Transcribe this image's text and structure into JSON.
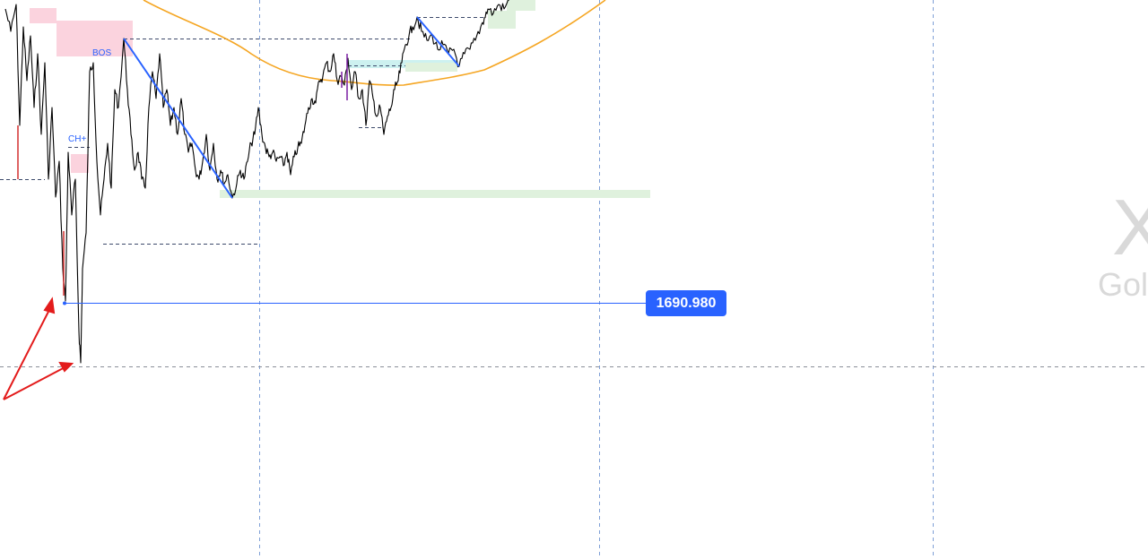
{
  "chart_data": {
    "type": "line",
    "symbol_watermark": "X",
    "symbol_subtitle_watermark": "Gol",
    "annotations": {
      "bos_label": "BOS",
      "choch_label": "CH+"
    },
    "horizontal_line": {
      "price": 1690.98,
      "label": "1690.980",
      "color": "#2962ff"
    },
    "colors": {
      "price_line": "#000000",
      "moving_average": "#f5a623",
      "structure_line": "#2962ff",
      "arrow": "#e31b1b",
      "supply_zone": "#fbd3de",
      "demand_zone": "#dff1dd",
      "fvg_zone": "#cdf1f0",
      "grid": "#7e9fd6"
    },
    "grid": true,
    "series": [
      {
        "values": []
      }
    ]
  }
}
